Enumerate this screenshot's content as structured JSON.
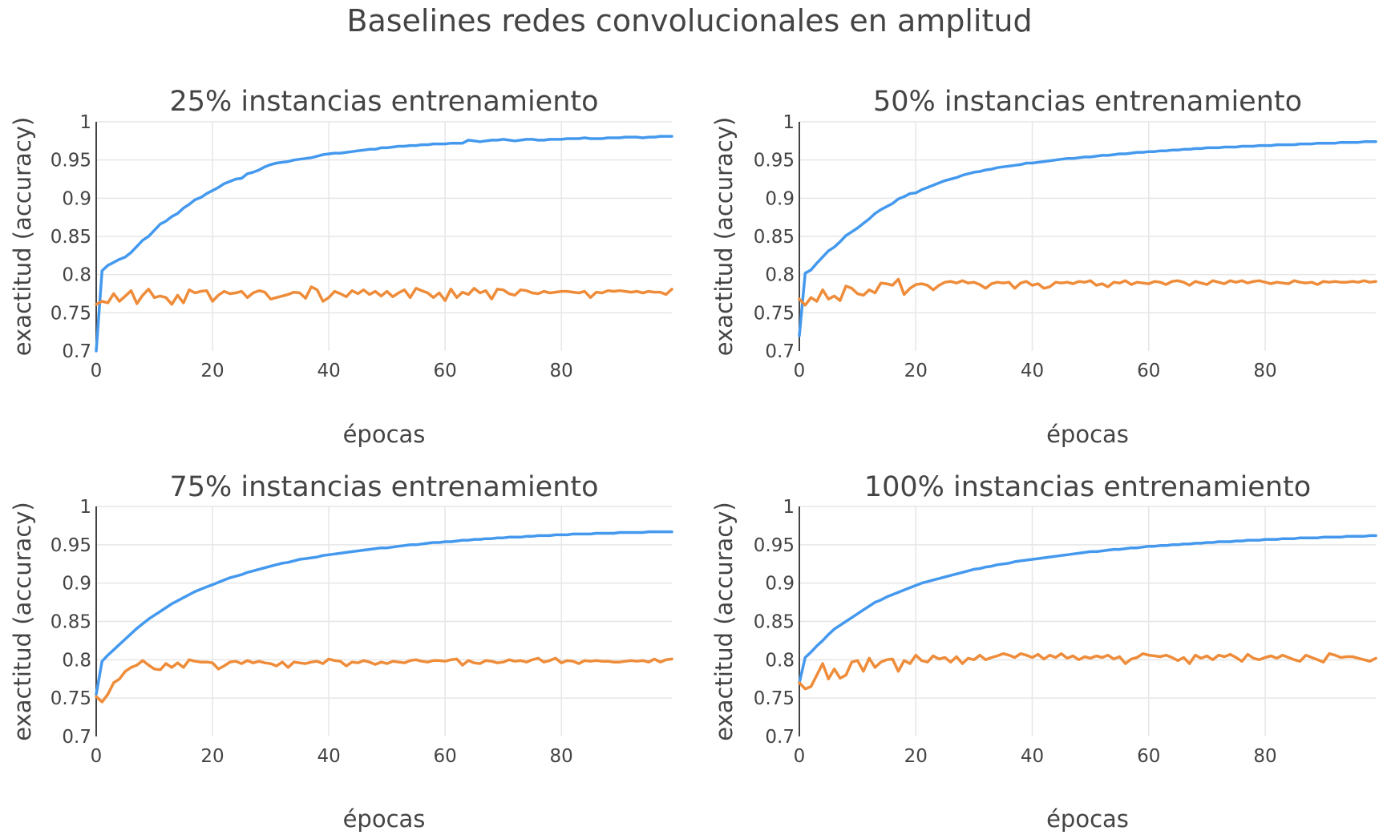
{
  "figure": {
    "title": "Baselines redes convolucionales en amplitud"
  },
  "colors": {
    "train": "#4499EE",
    "validation": "#EE8C3A"
  },
  "chart_data": [
    {
      "type": "line",
      "title": "25% instancias entrenamiento",
      "xlabel": "épocas",
      "ylabel": "exactitud (accuracy)",
      "xlim": [
        0,
        99
      ],
      "ylim": [
        0.7,
        1
      ],
      "xticks": [
        "0",
        "20",
        "40",
        "60",
        "80"
      ],
      "yticks": [
        "0.7",
        "0.75",
        "0.8",
        "0.85",
        "0.9",
        "0.95",
        "1"
      ],
      "grid": true,
      "series": [
        {
          "values": [
            0.7,
            0.805,
            0.812,
            0.816,
            0.82,
            0.823,
            0.829,
            0.837,
            0.845,
            0.85,
            0.858,
            0.866,
            0.87,
            0.876,
            0.88,
            0.887,
            0.892,
            0.898,
            0.901,
            0.906,
            0.91,
            0.914,
            0.919,
            0.922,
            0.925,
            0.926,
            0.932,
            0.934,
            0.937,
            0.941,
            0.944,
            0.946,
            0.947,
            0.948,
            0.95,
            0.951,
            0.952,
            0.953,
            0.955,
            0.957,
            0.958,
            0.959,
            0.959,
            0.96,
            0.961,
            0.962,
            0.963,
            0.964,
            0.964,
            0.966,
            0.966,
            0.967,
            0.968,
            0.968,
            0.969,
            0.969,
            0.97,
            0.97,
            0.971,
            0.971,
            0.971,
            0.972,
            0.972,
            0.972,
            0.976,
            0.975,
            0.974,
            0.975,
            0.976,
            0.976,
            0.977,
            0.976,
            0.975,
            0.976,
            0.977,
            0.977,
            0.976,
            0.976,
            0.977,
            0.977,
            0.977,
            0.978,
            0.978,
            0.978,
            0.979,
            0.978,
            0.978,
            0.978,
            0.979,
            0.979,
            0.979,
            0.98,
            0.98,
            0.98,
            0.979,
            0.98,
            0.98,
            0.981,
            0.981,
            0.981
          ]
        },
        {
          "values": [
            0.761,
            0.765,
            0.763,
            0.775,
            0.765,
            0.772,
            0.779,
            0.762,
            0.773,
            0.781,
            0.77,
            0.772,
            0.77,
            0.761,
            0.773,
            0.763,
            0.78,
            0.776,
            0.778,
            0.779,
            0.765,
            0.773,
            0.778,
            0.775,
            0.776,
            0.778,
            0.77,
            0.776,
            0.779,
            0.777,
            0.768,
            0.77,
            0.772,
            0.774,
            0.777,
            0.776,
            0.769,
            0.784,
            0.78,
            0.765,
            0.77,
            0.778,
            0.775,
            0.771,
            0.779,
            0.775,
            0.78,
            0.774,
            0.778,
            0.772,
            0.778,
            0.771,
            0.776,
            0.78,
            0.77,
            0.782,
            0.779,
            0.776,
            0.77,
            0.776,
            0.766,
            0.781,
            0.77,
            0.777,
            0.774,
            0.782,
            0.776,
            0.779,
            0.768,
            0.781,
            0.78,
            0.775,
            0.773,
            0.78,
            0.779,
            0.776,
            0.775,
            0.778,
            0.776,
            0.777,
            0.778,
            0.778,
            0.777,
            0.776,
            0.778,
            0.77,
            0.777,
            0.776,
            0.779,
            0.778,
            0.779,
            0.778,
            0.777,
            0.778,
            0.776,
            0.778,
            0.777,
            0.777,
            0.774,
            0.781
          ]
        }
      ]
    },
    {
      "type": "line",
      "title": "50% instancias entrenamiento",
      "xlabel": "épocas",
      "ylabel": "exactitud (accuracy)",
      "xlim": [
        0,
        99
      ],
      "ylim": [
        0.7,
        1
      ],
      "xticks": [
        "0",
        "20",
        "40",
        "60",
        "80"
      ],
      "yticks": [
        "0.7",
        "0.75",
        "0.8",
        "0.85",
        "0.9",
        "0.95",
        "1"
      ],
      "grid": true,
      "series": [
        {
          "values": [
            0.72,
            0.802,
            0.806,
            0.815,
            0.823,
            0.831,
            0.836,
            0.843,
            0.851,
            0.856,
            0.861,
            0.867,
            0.873,
            0.88,
            0.885,
            0.889,
            0.893,
            0.899,
            0.902,
            0.906,
            0.907,
            0.911,
            0.914,
            0.917,
            0.92,
            0.923,
            0.925,
            0.927,
            0.93,
            0.932,
            0.934,
            0.935,
            0.937,
            0.938,
            0.94,
            0.941,
            0.942,
            0.943,
            0.944,
            0.946,
            0.946,
            0.947,
            0.948,
            0.949,
            0.95,
            0.951,
            0.952,
            0.952,
            0.953,
            0.954,
            0.954,
            0.955,
            0.956,
            0.956,
            0.957,
            0.958,
            0.958,
            0.959,
            0.96,
            0.96,
            0.961,
            0.961,
            0.962,
            0.962,
            0.963,
            0.963,
            0.964,
            0.964,
            0.965,
            0.965,
            0.966,
            0.966,
            0.966,
            0.967,
            0.967,
            0.967,
            0.968,
            0.968,
            0.968,
            0.969,
            0.969,
            0.969,
            0.97,
            0.97,
            0.97,
            0.97,
            0.971,
            0.971,
            0.971,
            0.972,
            0.972,
            0.972,
            0.972,
            0.973,
            0.973,
            0.973,
            0.973,
            0.974,
            0.974,
            0.974
          ]
        },
        {
          "values": [
            0.768,
            0.76,
            0.77,
            0.765,
            0.78,
            0.768,
            0.772,
            0.766,
            0.785,
            0.782,
            0.775,
            0.773,
            0.78,
            0.776,
            0.789,
            0.788,
            0.786,
            0.794,
            0.774,
            0.782,
            0.787,
            0.788,
            0.786,
            0.78,
            0.786,
            0.79,
            0.791,
            0.789,
            0.792,
            0.789,
            0.79,
            0.787,
            0.782,
            0.788,
            0.79,
            0.789,
            0.79,
            0.782,
            0.789,
            0.791,
            0.786,
            0.788,
            0.782,
            0.784,
            0.79,
            0.789,
            0.79,
            0.788,
            0.791,
            0.79,
            0.792,
            0.786,
            0.788,
            0.784,
            0.79,
            0.789,
            0.792,
            0.787,
            0.79,
            0.789,
            0.788,
            0.791,
            0.79,
            0.787,
            0.791,
            0.792,
            0.79,
            0.786,
            0.791,
            0.789,
            0.787,
            0.792,
            0.79,
            0.788,
            0.792,
            0.79,
            0.792,
            0.789,
            0.791,
            0.792,
            0.79,
            0.788,
            0.79,
            0.789,
            0.788,
            0.792,
            0.79,
            0.789,
            0.79,
            0.787,
            0.791,
            0.79,
            0.791,
            0.79,
            0.79,
            0.791,
            0.79,
            0.792,
            0.79,
            0.791
          ]
        }
      ]
    },
    {
      "type": "line",
      "title": "75% instancias entrenamiento",
      "xlabel": "épocas",
      "ylabel": "exactitud (accuracy)",
      "xlim": [
        0,
        99
      ],
      "ylim": [
        0.7,
        1
      ],
      "xticks": [
        "0",
        "20",
        "40",
        "60",
        "80"
      ],
      "yticks": [
        "0.7",
        "0.75",
        "0.8",
        "0.85",
        "0.9",
        "0.95",
        "1"
      ],
      "grid": true,
      "series": [
        {
          "values": [
            0.755,
            0.798,
            0.806,
            0.813,
            0.82,
            0.827,
            0.834,
            0.841,
            0.847,
            0.853,
            0.858,
            0.863,
            0.868,
            0.873,
            0.877,
            0.881,
            0.885,
            0.889,
            0.892,
            0.895,
            0.898,
            0.901,
            0.904,
            0.907,
            0.909,
            0.911,
            0.914,
            0.916,
            0.918,
            0.92,
            0.922,
            0.924,
            0.926,
            0.927,
            0.929,
            0.931,
            0.932,
            0.933,
            0.934,
            0.936,
            0.937,
            0.938,
            0.939,
            0.94,
            0.941,
            0.942,
            0.943,
            0.944,
            0.945,
            0.946,
            0.946,
            0.947,
            0.948,
            0.949,
            0.95,
            0.95,
            0.951,
            0.952,
            0.953,
            0.953,
            0.954,
            0.954,
            0.955,
            0.956,
            0.956,
            0.957,
            0.957,
            0.958,
            0.958,
            0.959,
            0.959,
            0.96,
            0.96,
            0.96,
            0.961,
            0.961,
            0.962,
            0.962,
            0.962,
            0.963,
            0.963,
            0.963,
            0.964,
            0.964,
            0.964,
            0.964,
            0.965,
            0.965,
            0.965,
            0.965,
            0.966,
            0.966,
            0.966,
            0.966,
            0.966,
            0.967,
            0.967,
            0.967,
            0.967,
            0.967
          ]
        },
        {
          "values": [
            0.752,
            0.745,
            0.755,
            0.77,
            0.775,
            0.785,
            0.79,
            0.793,
            0.799,
            0.793,
            0.788,
            0.787,
            0.795,
            0.79,
            0.796,
            0.79,
            0.8,
            0.798,
            0.797,
            0.797,
            0.796,
            0.788,
            0.792,
            0.797,
            0.798,
            0.795,
            0.799,
            0.796,
            0.798,
            0.796,
            0.795,
            0.792,
            0.797,
            0.79,
            0.797,
            0.796,
            0.795,
            0.797,
            0.798,
            0.795,
            0.801,
            0.799,
            0.798,
            0.792,
            0.797,
            0.796,
            0.799,
            0.797,
            0.794,
            0.797,
            0.795,
            0.798,
            0.797,
            0.796,
            0.799,
            0.8,
            0.798,
            0.797,
            0.799,
            0.799,
            0.798,
            0.8,
            0.801,
            0.793,
            0.799,
            0.796,
            0.795,
            0.799,
            0.798,
            0.796,
            0.797,
            0.8,
            0.798,
            0.799,
            0.797,
            0.8,
            0.802,
            0.797,
            0.799,
            0.802,
            0.796,
            0.799,
            0.798,
            0.795,
            0.799,
            0.798,
            0.799,
            0.798,
            0.798,
            0.797,
            0.797,
            0.798,
            0.799,
            0.798,
            0.799,
            0.797,
            0.801,
            0.797,
            0.8,
            0.801
          ]
        }
      ]
    },
    {
      "type": "line",
      "title": "100% instancias entrenamiento",
      "xlabel": "épocas",
      "ylabel": "exactitud (accuracy)",
      "xlim": [
        0,
        99
      ],
      "ylim": [
        0.7,
        1
      ],
      "xticks": [
        "0",
        "20",
        "40",
        "60",
        "80"
      ],
      "yticks": [
        "0.7",
        "0.75",
        "0.8",
        "0.85",
        "0.9",
        "0.95",
        "1"
      ],
      "grid": true,
      "series": [
        {
          "values": [
            0.77,
            0.803,
            0.81,
            0.818,
            0.825,
            0.833,
            0.84,
            0.845,
            0.85,
            0.855,
            0.86,
            0.865,
            0.87,
            0.875,
            0.878,
            0.882,
            0.885,
            0.888,
            0.891,
            0.894,
            0.897,
            0.9,
            0.902,
            0.904,
            0.906,
            0.908,
            0.91,
            0.912,
            0.914,
            0.916,
            0.918,
            0.919,
            0.921,
            0.922,
            0.924,
            0.925,
            0.926,
            0.928,
            0.929,
            0.93,
            0.931,
            0.932,
            0.933,
            0.934,
            0.935,
            0.936,
            0.937,
            0.938,
            0.939,
            0.94,
            0.941,
            0.941,
            0.942,
            0.943,
            0.944,
            0.944,
            0.945,
            0.946,
            0.946,
            0.947,
            0.948,
            0.948,
            0.949,
            0.949,
            0.95,
            0.95,
            0.951,
            0.951,
            0.952,
            0.952,
            0.953,
            0.953,
            0.954,
            0.954,
            0.954,
            0.955,
            0.955,
            0.956,
            0.956,
            0.956,
            0.957,
            0.957,
            0.957,
            0.958,
            0.958,
            0.958,
            0.959,
            0.959,
            0.959,
            0.959,
            0.96,
            0.96,
            0.96,
            0.96,
            0.961,
            0.961,
            0.961,
            0.961,
            0.962,
            0.962
          ]
        },
        {
          "values": [
            0.77,
            0.762,
            0.765,
            0.78,
            0.795,
            0.775,
            0.788,
            0.776,
            0.78,
            0.797,
            0.799,
            0.785,
            0.802,
            0.79,
            0.797,
            0.8,
            0.801,
            0.785,
            0.799,
            0.795,
            0.806,
            0.799,
            0.797,
            0.805,
            0.801,
            0.803,
            0.797,
            0.804,
            0.795,
            0.802,
            0.8,
            0.806,
            0.8,
            0.803,
            0.805,
            0.808,
            0.806,
            0.803,
            0.808,
            0.806,
            0.803,
            0.807,
            0.801,
            0.806,
            0.803,
            0.808,
            0.802,
            0.805,
            0.8,
            0.804,
            0.802,
            0.805,
            0.803,
            0.806,
            0.801,
            0.804,
            0.795,
            0.801,
            0.803,
            0.808,
            0.806,
            0.805,
            0.804,
            0.806,
            0.803,
            0.799,
            0.803,
            0.795,
            0.806,
            0.802,
            0.805,
            0.8,
            0.806,
            0.804,
            0.807,
            0.803,
            0.798,
            0.807,
            0.802,
            0.8,
            0.803,
            0.805,
            0.802,
            0.806,
            0.803,
            0.8,
            0.798,
            0.806,
            0.803,
            0.8,
            0.797,
            0.808,
            0.806,
            0.803,
            0.804,
            0.804,
            0.802,
            0.8,
            0.798,
            0.802
          ]
        }
      ]
    }
  ]
}
